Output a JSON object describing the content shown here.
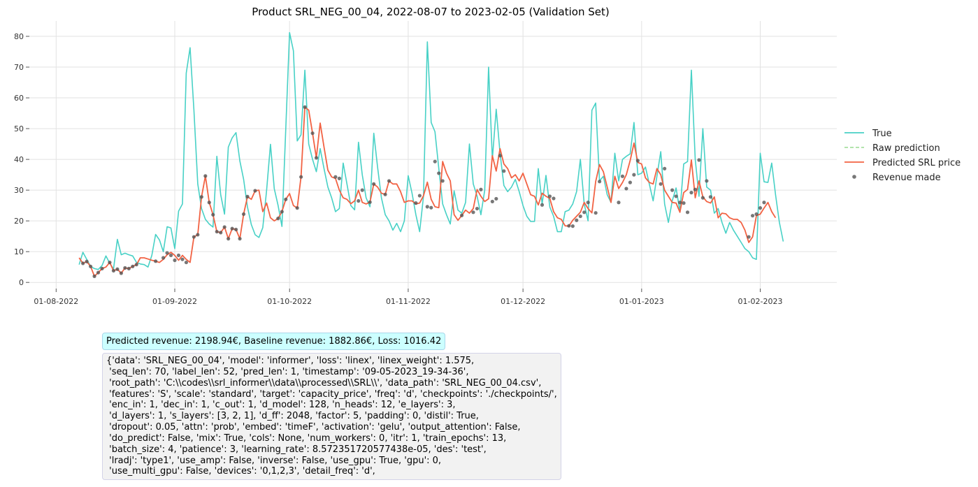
{
  "chart_data": {
    "type": "line",
    "title": "Product SRL_NEG_00_04, 2022-08-07 to 2023-02-05 (Validation Set)",
    "x_start": "2022-08-07",
    "x_end": "2023-02-05",
    "xlim": [
      "2022-07-25",
      "2023-02-21"
    ],
    "ylim": [
      -2,
      85
    ],
    "x_ticks": [
      "01-08-2022",
      "01-09-2022",
      "01-10-2022",
      "01-11-2022",
      "01-12-2022",
      "01-01-2023",
      "01-02-2023"
    ],
    "x_tick_dates": [
      "2022-08-01",
      "2022-09-01",
      "2022-10-01",
      "2022-11-01",
      "2022-12-01",
      "2023-01-01",
      "2023-02-01"
    ],
    "y_ticks": [
      0,
      10,
      20,
      30,
      40,
      50,
      60,
      70,
      80
    ],
    "grid": true,
    "legend_position": "right",
    "series": [
      {
        "name": "True",
        "color": "#48d1c6",
        "style": "solid",
        "values": [
          5.8,
          9.8,
          7.5,
          5.2,
          4.5,
          4.2,
          5.5,
          8.6,
          6.2,
          4.4,
          14.0,
          9.0,
          9.5,
          9.0,
          8.6,
          6.5,
          6.0,
          5.8,
          5.0,
          8.8,
          15.6,
          13.8,
          10.0,
          18.1,
          17.7,
          11.0,
          23.2,
          25.5,
          68.0,
          76.3,
          56.0,
          32.0,
          24.0,
          20.5,
          19.0,
          18.0,
          41.0,
          28.5,
          22.2,
          44.0,
          47.0,
          48.7,
          39.5,
          33.5,
          24.5,
          18.8,
          15.5,
          14.6,
          17.8,
          30.0,
          44.9,
          30.5,
          25.0,
          18.2,
          50.0,
          81.2,
          75.3,
          46.0,
          48.0,
          69.0,
          45.0,
          40.0,
          36.0,
          43.5,
          37.0,
          31.0,
          27.5,
          23.0,
          24.0,
          38.8,
          32.0,
          25.0,
          23.6,
          45.6,
          35.0,
          27.5,
          24.6,
          48.5,
          37.5,
          27.5,
          22.0,
          20.0,
          17.0,
          19.2,
          16.5,
          20.0,
          34.7,
          29.0,
          22.0,
          16.5,
          28.0,
          78.2,
          52.0,
          49.0,
          37.0,
          25.5,
          22.0,
          19.0,
          29.8,
          23.5,
          22.5,
          26.0,
          45.0,
          32.0,
          28.0,
          22.0,
          30.0,
          70.0,
          40.0,
          56.3,
          42.0,
          31.5,
          29.5,
          31.0,
          33.5,
          29.5,
          25.0,
          21.5,
          19.8,
          19.8,
          37.0,
          25.5,
          34.8,
          24.5,
          21.5,
          16.5,
          16.5,
          23.0,
          23.5,
          25.5,
          29.5,
          40.0,
          25.5,
          20.0,
          56.0,
          58.3,
          33.0,
          34.5,
          28.5,
          26.0,
          42.0,
          33.0,
          40.0,
          41.0,
          41.8,
          52.0,
          35.0,
          35.5,
          37.5,
          32.0,
          26.5,
          34.5,
          42.5,
          25.5,
          19.5,
          26.5,
          30.7,
          23.0,
          38.5,
          39.3,
          69.0,
          40.0,
          28.0,
          50.0,
          31.0,
          30.0,
          22.5,
          24.0,
          19.5,
          16.0,
          19.5,
          17.0,
          15.0,
          13.0,
          11.0,
          10.0,
          8.0,
          7.5,
          42.0,
          32.7,
          32.5,
          38.8,
          28.5,
          19.5,
          13.3
        ]
      },
      {
        "name": "Raw prediction",
        "color": "#a8e0a0",
        "style": "dashed",
        "values": []
      },
      {
        "name": "Predicted SRL price",
        "color": "#f26243",
        "style": "solid",
        "values": [
          8.0,
          6.2,
          6.8,
          5.2,
          2.0,
          3.2,
          4.5,
          5.0,
          6.5,
          3.8,
          4.3,
          3.0,
          4.7,
          4.5,
          5.2,
          5.8,
          8.0,
          8.0,
          7.6,
          7.2,
          6.9,
          6.5,
          7.5,
          9.0,
          9.8,
          8.8,
          7.2,
          8.8,
          7.5,
          6.5,
          14.8,
          15.5,
          27.8,
          34.6,
          26.0,
          22.0,
          16.5,
          16.2,
          18.0,
          14.2,
          17.5,
          17.2,
          14.2,
          22.2,
          27.9,
          27.0,
          29.8,
          30.0,
          23.0,
          25.8,
          21.0,
          20.0,
          20.8,
          23.0,
          27.0,
          28.9,
          25.0,
          24.2,
          34.3,
          57.0,
          56.0,
          48.5,
          40.5,
          51.8,
          44.0,
          36.5,
          34.3,
          33.8,
          30.0,
          27.5,
          27.0,
          25.6,
          26.5,
          30.0,
          26.0,
          25.5,
          26.1,
          32.0,
          31.0,
          29.0,
          28.6,
          33.0,
          32.0,
          32.0,
          29.5,
          26.0,
          26.5,
          26.5,
          25.5,
          25.8,
          28.2,
          32.6,
          27.0,
          24.6,
          24.3,
          39.3,
          35.5,
          33.0,
          22.0,
          20.2,
          21.8,
          23.5,
          22.5,
          24.0,
          30.2,
          28.0,
          26.3,
          27.2,
          41.2,
          36.2,
          43.5,
          38.5,
          37.0,
          34.0,
          35.0,
          33.0,
          35.5,
          32.0,
          28.5,
          28.0,
          25.2,
          29.0,
          28.0,
          27.3,
          23.0,
          21.0,
          20.5,
          18.4,
          18.3,
          20.2,
          21.5,
          22.8,
          26.0,
          24.0,
          22.6,
          32.8,
          38.3,
          36.0,
          31.0,
          26.0,
          34.5,
          30.5,
          32.5,
          35.0,
          39.6,
          45.3,
          39.0,
          38.5,
          34.0,
          32.5,
          32.0,
          37.0,
          35.0,
          30.0,
          28.0,
          26.0,
          25.8,
          22.8,
          29.2,
          30.2,
          39.8,
          27.5,
          33.0,
          27.8,
          26.3,
          25.8,
          27.8,
          21.0,
          22.5,
          22.3,
          21.0,
          20.5,
          20.5,
          19.5,
          17.0,
          13.0,
          14.8,
          21.7,
          22.2,
          24.2,
          26.0,
          23.0,
          21.0
        ]
      },
      {
        "name": "Revenue made",
        "color": "#555555",
        "style": "markers",
        "points": [
          [
            1,
            6.2
          ],
          [
            2,
            6.8
          ],
          [
            3,
            5.2
          ],
          [
            4,
            2.0
          ],
          [
            5,
            3.2
          ],
          [
            6,
            4.5
          ],
          [
            8,
            6.5
          ],
          [
            9,
            3.8
          ],
          [
            10,
            4.3
          ],
          [
            11,
            3.0
          ],
          [
            12,
            4.7
          ],
          [
            13,
            4.5
          ],
          [
            14,
            5.2
          ],
          [
            15,
            5.8
          ],
          [
            20,
            6.9
          ],
          [
            22,
            8.0
          ],
          [
            23,
            9.6
          ],
          [
            24,
            8.8
          ],
          [
            25,
            7.2
          ],
          [
            26,
            8.8
          ],
          [
            27,
            7.5
          ],
          [
            28,
            6.5
          ],
          [
            30,
            14.8
          ],
          [
            31,
            15.5
          ],
          [
            32,
            27.8
          ],
          [
            33,
            34.6
          ],
          [
            34,
            26.0
          ],
          [
            35,
            22.0
          ],
          [
            36,
            16.5
          ],
          [
            37,
            16.2
          ],
          [
            38,
            18.0
          ],
          [
            39,
            14.2
          ],
          [
            40,
            17.5
          ],
          [
            41,
            17.2
          ],
          [
            42,
            14.2
          ],
          [
            43,
            22.2
          ],
          [
            44,
            27.9
          ],
          [
            46,
            29.8
          ],
          [
            52,
            20.8
          ],
          [
            53,
            23.0
          ],
          [
            54,
            27.0
          ],
          [
            57,
            24.2
          ],
          [
            58,
            34.3
          ],
          [
            59,
            57.0
          ],
          [
            61,
            48.5
          ],
          [
            62,
            40.5
          ],
          [
            67,
            34.3
          ],
          [
            68,
            33.8
          ],
          [
            73,
            26.5
          ],
          [
            74,
            30.0
          ],
          [
            76,
            26.1
          ],
          [
            77,
            32.0
          ],
          [
            80,
            28.6
          ],
          [
            81,
            33.0
          ],
          [
            88,
            25.8
          ],
          [
            89,
            28.2
          ],
          [
            91,
            24.6
          ],
          [
            92,
            24.3
          ],
          [
            93,
            39.3
          ],
          [
            94,
            35.5
          ],
          [
            95,
            33.0
          ],
          [
            100,
            21.8
          ],
          [
            103,
            22.8
          ],
          [
            104,
            24.0
          ],
          [
            105,
            30.2
          ],
          [
            108,
            26.3
          ],
          [
            109,
            27.2
          ],
          [
            110,
            41.2
          ],
          [
            111,
            36.2
          ],
          [
            121,
            25.2
          ],
          [
            123,
            28.0
          ],
          [
            124,
            27.3
          ],
          [
            128,
            18.4
          ],
          [
            129,
            18.3
          ],
          [
            130,
            20.2
          ],
          [
            131,
            21.5
          ],
          [
            132,
            22.8
          ],
          [
            133,
            26.0
          ],
          [
            135,
            22.6
          ],
          [
            136,
            32.8
          ],
          [
            141,
            26.0
          ],
          [
            142,
            34.5
          ],
          [
            143,
            30.5
          ],
          [
            144,
            32.5
          ],
          [
            145,
            35.0
          ],
          [
            146,
            39.6
          ],
          [
            152,
            32.0
          ],
          [
            153,
            37.0
          ],
          [
            155,
            30.0
          ],
          [
            156,
            28.0
          ],
          [
            157,
            26.0
          ],
          [
            158,
            25.8
          ],
          [
            159,
            22.8
          ],
          [
            160,
            29.2
          ],
          [
            161,
            30.2
          ],
          [
            162,
            39.8
          ],
          [
            163,
            27.5
          ],
          [
            164,
            33.0
          ],
          [
            165,
            27.8
          ],
          [
            175,
            14.8
          ],
          [
            176,
            21.7
          ],
          [
            177,
            22.2
          ],
          [
            178,
            24.2
          ],
          [
            179,
            26.0
          ]
        ]
      }
    ]
  },
  "revenue_box": "Predicted revenue: 2198.94€, Baseline revenue: 1882.86€, Loss: 1016.42",
  "config_box": "{'data': 'SRL_NEG_00_04', 'model': 'informer', 'loss': 'linex', 'linex_weight': 1.575,\n 'seq_len': 70, 'label_len': 52, 'pred_len': 1, 'timestamp': '09-05-2023_19-34-36',\n 'root_path': 'C:\\\\codes\\\\srl_informer\\\\data\\\\processed\\\\SRL\\\\', 'data_path': 'SRL_NEG_00_04.csv',\n 'features': 'S', 'scale': 'standard', 'target': 'capacity_price', 'freq': 'd', 'checkpoints': './checkpoints/',\n 'enc_in': 1, 'dec_in': 1, 'c_out': 1, 'd_model': 128, 'n_heads': 12, 'e_layers': 3,\n 'd_layers': 1, 's_layers': [3, 2, 1], 'd_ff': 2048, 'factor': 5, 'padding': 0, 'distil': True,\n 'dropout': 0.05, 'attn': 'prob', 'embed': 'timeF', 'activation': 'gelu', 'output_attention': False,\n 'do_predict': False, 'mix': True, 'cols': None, 'num_workers': 0, 'itr': 1, 'train_epochs': 13,\n 'batch_size': 4, 'patience': 3, 'learning_rate': 8.572351720577438e-05, 'des': 'test',\n 'lradj': 'type1', 'use_amp': False, 'inverse': False, 'use_gpu': True, 'gpu': 0,\n 'use_multi_gpu': False, 'devices': '0,1,2,3', 'detail_freq': 'd',"
}
